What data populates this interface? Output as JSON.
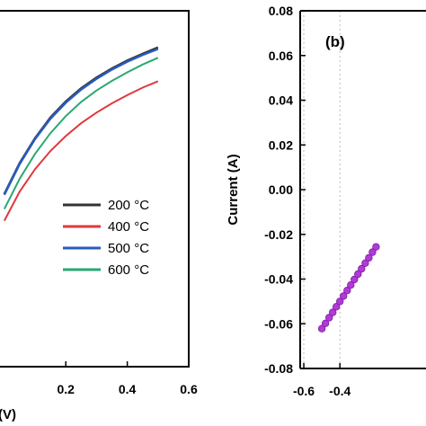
{
  "chart_data": [
    {
      "type": "line",
      "panel_label": "",
      "xlabel": "(V)",
      "ylabel": "",
      "xlim": [
        -0.02,
        0.6
      ],
      "ylim": [
        -0.1,
        0.9
      ],
      "xticks": [
        0.2,
        0.4,
        0.6
      ],
      "xtick_labels": [
        "0.2",
        "0.4",
        "0.6"
      ],
      "grid": false,
      "legend_position": "center-right",
      "x": [
        0.0,
        0.05,
        0.1,
        0.15,
        0.2,
        0.25,
        0.3,
        0.35,
        0.4,
        0.45,
        0.5
      ],
      "series": [
        {
          "name": "200 °C",
          "color": "#333333",
          "values": [
            0.385,
            0.472,
            0.542,
            0.6,
            0.645,
            0.682,
            0.712,
            0.738,
            0.76,
            0.779,
            0.797
          ]
        },
        {
          "name": "400 °C",
          "color": "#e0383e",
          "values": [
            0.31,
            0.392,
            0.455,
            0.506,
            0.548,
            0.584,
            0.614,
            0.64,
            0.663,
            0.684,
            0.702
          ]
        },
        {
          "name": "500 °C",
          "color": "#2a5bbd",
          "values": [
            0.383,
            0.47,
            0.54,
            0.597,
            0.642,
            0.679,
            0.709,
            0.735,
            0.757,
            0.776,
            0.793
          ]
        },
        {
          "name": "600 °C",
          "color": "#29a872",
          "values": [
            0.343,
            0.428,
            0.498,
            0.556,
            0.604,
            0.644,
            0.676,
            0.703,
            0.727,
            0.749,
            0.768
          ]
        }
      ]
    },
    {
      "type": "scatter",
      "panel_label": "(b)",
      "xlabel": "",
      "ylabel": "Current (A)",
      "xlim": [
        -0.62,
        0.12
      ],
      "ylim": [
        -0.08,
        0.08
      ],
      "xticks": [
        -0.6,
        -0.4
      ],
      "xtick_labels": [
        "-0.6",
        "-0.4"
      ],
      "yticks": [
        -0.08,
        -0.06,
        -0.04,
        -0.02,
        0.0,
        0.02,
        0.04,
        0.06,
        0.08
      ],
      "ytick_labels": [
        "-0.08",
        "-0.06",
        "-0.04",
        "-0.02",
        "0.00",
        "0.02",
        "0.04",
        "0.06",
        "0.08"
      ],
      "grid": true,
      "series": [
        {
          "name": "",
          "color": "#b23ad6",
          "x": [
            -0.5,
            -0.48,
            -0.46,
            -0.44,
            -0.42,
            -0.4,
            -0.38,
            -0.36,
            -0.34,
            -0.32,
            -0.3,
            -0.28,
            -0.26,
            -0.24,
            -0.22,
            -0.2
          ],
          "values": [
            -0.0622,
            -0.0598,
            -0.0573,
            -0.0549,
            -0.0524,
            -0.05,
            -0.0476,
            -0.0451,
            -0.0427,
            -0.0402,
            -0.0378,
            -0.0354,
            -0.0329,
            -0.0305,
            -0.028,
            -0.0256
          ]
        }
      ]
    }
  ]
}
